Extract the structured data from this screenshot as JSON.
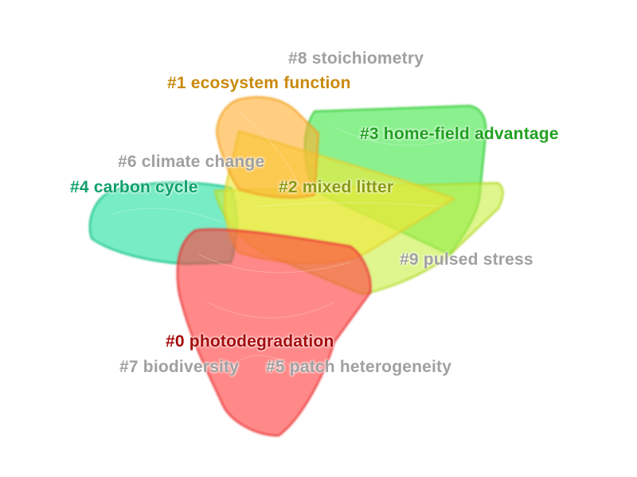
{
  "clusters": [
    {
      "id": "0",
      "label": "#0 photodegradation",
      "color": "#a50c0c"
    },
    {
      "id": "1",
      "label": "#1 ecosystem function",
      "color": "#c98a0c"
    },
    {
      "id": "2",
      "label": "#2 mixed litter",
      "color": "#8a9a12"
    },
    {
      "id": "3",
      "label": "#3 home-field advantage",
      "color": "#20a020"
    },
    {
      "id": "4",
      "label": "#4 carbon cycle",
      "color": "#10a06a"
    },
    {
      "id": "5",
      "label": "#5 patch heterogeneity",
      "color": "#a0a0a0"
    },
    {
      "id": "6",
      "label": "#6 climate change",
      "color": "#a0a0a0"
    },
    {
      "id": "7",
      "label": "#7 biodiversity",
      "color": "#a0a0a0"
    },
    {
      "id": "8",
      "label": "#8 stoichiometry",
      "color": "#a0a0a0"
    },
    {
      "id": "9",
      "label": "#9 pulsed stress",
      "color": "#a0a0a0"
    }
  ]
}
